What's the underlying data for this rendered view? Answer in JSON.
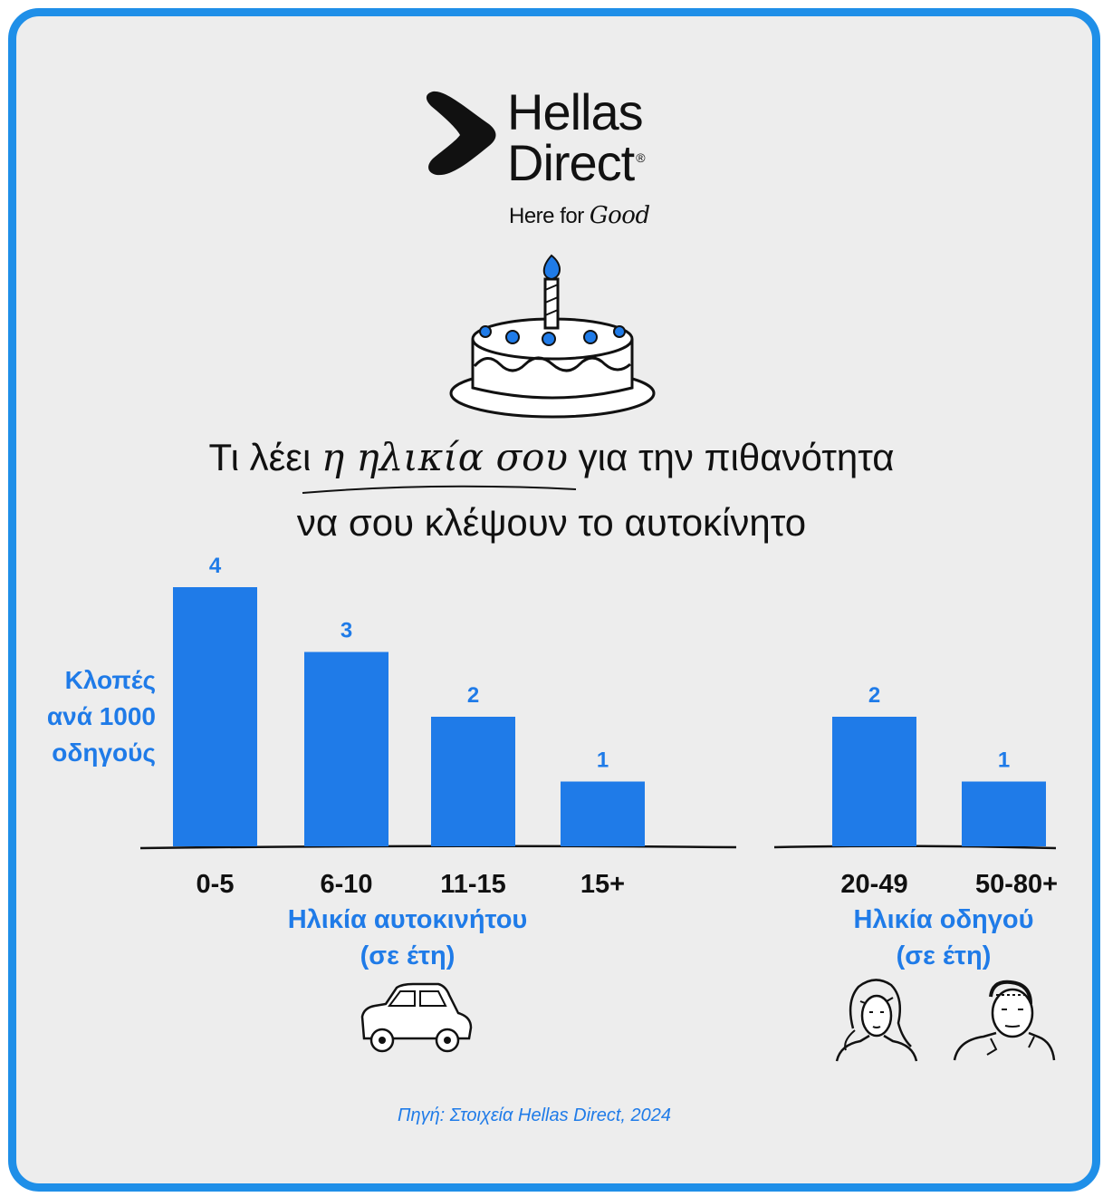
{
  "brand": {
    "name_line1": "Hellas",
    "name_line2": "Direct",
    "registered_mark": "®",
    "tagline_prefix": "Here for",
    "tagline_script": "Good",
    "logo_icon": "chevron-logo-icon"
  },
  "headline": {
    "line1_before": "Τι λέει",
    "line1_script": "η ηλικία σου",
    "line1_after": "για την πιθανότητα",
    "line2": "να σου κλέψουν το αυτοκίνητο"
  },
  "colors": {
    "accent": "#1f7be8",
    "bar": "#1f7be8",
    "frame": "#1f8fe8",
    "background": "#ededed",
    "text": "#111111"
  },
  "icons": [
    "birthday-cake-icon",
    "car-icon",
    "woman-face-icon",
    "man-face-icon"
  ],
  "chart_data": [
    {
      "type": "bar",
      "title": "",
      "ylabel": "Κλοπές ανά 1000 οδηγούς",
      "xlabel": "Ηλικία αυτοκινήτου (σε έτη)",
      "categories": [
        "0-5",
        "6-10",
        "11-15",
        "15+"
      ],
      "values": [
        4,
        3,
        2,
        1
      ],
      "ylim": [
        0,
        4.5
      ],
      "grid": false
    },
    {
      "type": "bar",
      "title": "",
      "ylabel": "Κλοπές ανά 1000 οδηγούς",
      "xlabel": "Ηλικία οδηγού (σε έτη)",
      "categories": [
        "20-49",
        "50-80+"
      ],
      "values": [
        2,
        1
      ],
      "ylim": [
        0,
        4.5
      ],
      "grid": false
    }
  ],
  "labels": {
    "ylabel_line1": "Κλοπές",
    "ylabel_line2": "ανά 1000",
    "ylabel_line3": "οδηγούς",
    "car_axis_line1": "Ηλικία αυτοκινήτου",
    "car_axis_line2": "(σε έτη)",
    "driver_axis_line1": "Ηλικία οδηγού",
    "driver_axis_line2": "(σε έτη)"
  },
  "source": "Πηγή: Στοιχεία Hellas Direct, 2024"
}
